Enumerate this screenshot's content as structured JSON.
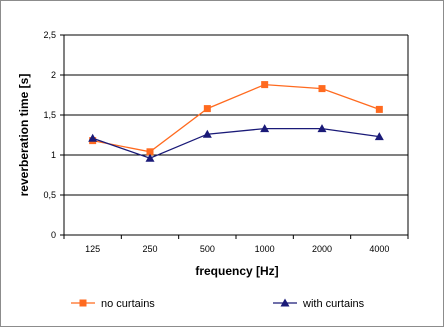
{
  "chart_data": {
    "type": "line",
    "xlabel": "frequency [Hz]",
    "ylabel": "reverberation time [s]",
    "categories": [
      "125",
      "250",
      "500",
      "1000",
      "2000",
      "4000"
    ],
    "ylim": [
      0,
      2.5
    ],
    "y_ticks": [
      "0",
      "0,5",
      "1",
      "1,5",
      "2",
      "2,5"
    ],
    "grid": "horizontal",
    "legend_position": "bottom",
    "series": [
      {
        "name": "no curtains",
        "color": "#ff6a1f",
        "marker": "square",
        "values": [
          1.18,
          1.04,
          1.58,
          1.88,
          1.83,
          1.57
        ]
      },
      {
        "name": "with curtains",
        "color": "#1a1a78",
        "marker": "triangle",
        "values": [
          1.21,
          0.96,
          1.26,
          1.33,
          1.33,
          1.23
        ]
      }
    ]
  }
}
